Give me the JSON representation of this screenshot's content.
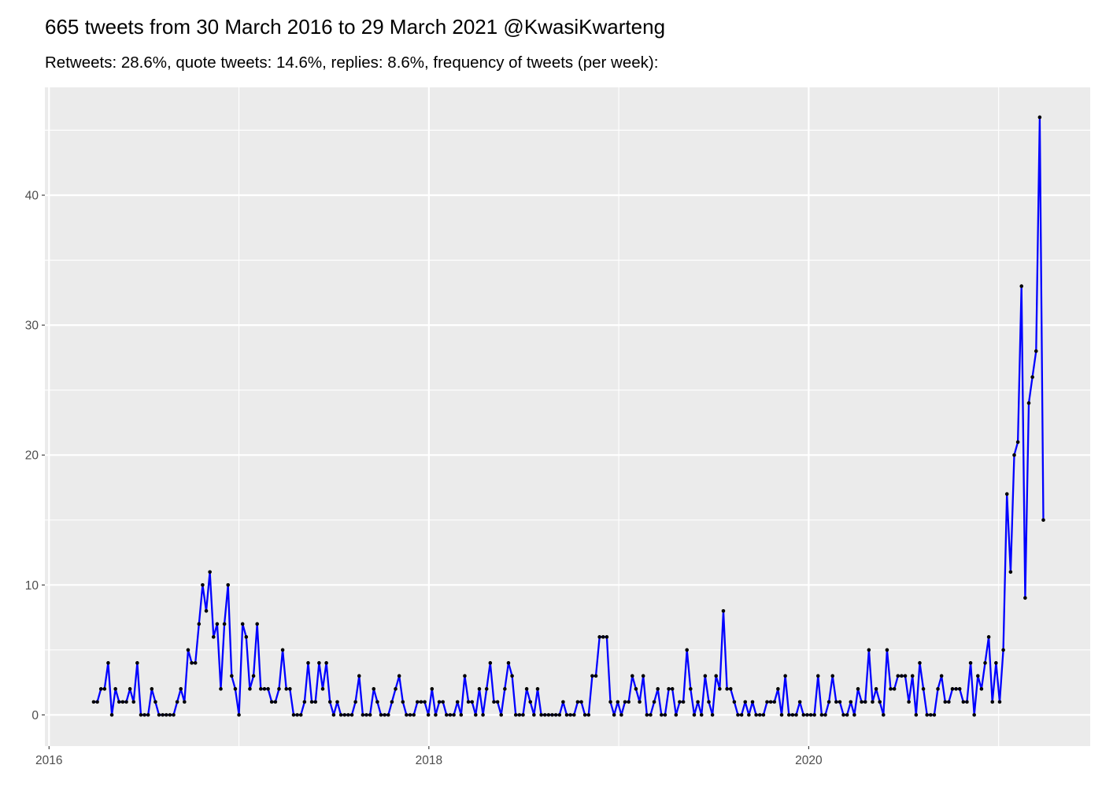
{
  "chart_data": {
    "type": "line",
    "title": "665 tweets from 30 March 2016 to 29 March 2021 @KwasiKwarteng",
    "subtitle": "Retweets: 28.6%, quote tweets: 14.6%, replies: 8.6%, frequency of tweets (per week):",
    "xlabel": "",
    "ylabel": "",
    "xlim": [
      "2015-12-24",
      "2021-06-26"
    ],
    "ylim": [
      -2.4,
      48.3
    ],
    "x_ticks": [
      "2016",
      "2018",
      "2020"
    ],
    "y_ticks": [
      "0",
      "10",
      "20",
      "30",
      "40"
    ],
    "grid": true,
    "legend": "none",
    "colors": {
      "line": "#0000ff",
      "points": "#000000",
      "panel": "#ebebeb",
      "grid": "#ffffff"
    },
    "x": [
      "2016-03-27",
      "2016-04-03",
      "2016-04-10",
      "2016-04-17",
      "2016-04-24",
      "2016-05-01",
      "2016-05-08",
      "2016-05-15",
      "2016-05-22",
      "2016-05-29",
      "2016-06-05",
      "2016-06-12",
      "2016-06-19",
      "2016-06-26",
      "2016-07-03",
      "2016-07-10",
      "2016-07-17",
      "2016-07-24",
      "2016-07-31",
      "2016-08-07",
      "2016-08-14",
      "2016-08-21",
      "2016-08-28",
      "2016-09-04",
      "2016-09-11",
      "2016-09-18",
      "2016-09-25",
      "2016-10-02",
      "2016-10-09",
      "2016-10-16",
      "2016-10-23",
      "2016-10-30",
      "2016-11-06",
      "2016-11-13",
      "2016-11-20",
      "2016-11-27",
      "2016-12-04",
      "2016-12-11",
      "2016-12-18",
      "2016-12-25",
      "2017-01-01",
      "2017-01-08",
      "2017-01-15",
      "2017-01-22",
      "2017-01-29",
      "2017-02-05",
      "2017-02-12",
      "2017-02-19",
      "2017-02-26",
      "2017-03-05",
      "2017-03-12",
      "2017-03-19",
      "2017-03-26",
      "2017-04-02",
      "2017-04-09",
      "2017-04-16",
      "2017-04-23",
      "2017-04-30",
      "2017-05-07",
      "2017-05-14",
      "2017-05-21",
      "2017-05-28",
      "2017-06-04",
      "2017-06-11",
      "2017-06-18",
      "2017-06-25",
      "2017-07-02",
      "2017-07-09",
      "2017-07-16",
      "2017-07-23",
      "2017-07-30",
      "2017-08-06",
      "2017-08-13",
      "2017-08-20",
      "2017-08-27",
      "2017-09-03",
      "2017-09-10",
      "2017-09-17",
      "2017-09-24",
      "2017-10-01",
      "2017-10-08",
      "2017-10-15",
      "2017-10-22",
      "2017-10-29",
      "2017-11-05",
      "2017-11-12",
      "2017-11-19",
      "2017-11-26",
      "2017-12-03",
      "2017-12-10",
      "2017-12-17",
      "2017-12-24",
      "2017-12-31",
      "2018-01-07",
      "2018-01-14",
      "2018-01-21",
      "2018-01-28",
      "2018-02-04",
      "2018-02-11",
      "2018-02-18",
      "2018-02-25",
      "2018-03-04",
      "2018-03-11",
      "2018-03-18",
      "2018-03-25",
      "2018-04-01",
      "2018-04-08",
      "2018-04-15",
      "2018-04-22",
      "2018-04-29",
      "2018-05-06",
      "2018-05-13",
      "2018-05-20",
      "2018-05-27",
      "2018-06-03",
      "2018-06-10",
      "2018-06-17",
      "2018-06-24",
      "2018-07-01",
      "2018-07-08",
      "2018-07-15",
      "2018-07-22",
      "2018-07-29",
      "2018-08-05",
      "2018-08-12",
      "2018-08-19",
      "2018-08-26",
      "2018-09-02",
      "2018-09-09",
      "2018-09-16",
      "2018-09-23",
      "2018-09-30",
      "2018-10-07",
      "2018-10-14",
      "2018-10-21",
      "2018-10-28",
      "2018-11-04",
      "2018-11-11",
      "2018-11-18",
      "2018-11-25",
      "2018-12-02",
      "2018-12-09",
      "2018-12-16",
      "2018-12-23",
      "2018-12-30",
      "2019-01-06",
      "2019-01-13",
      "2019-01-20",
      "2019-01-27",
      "2019-02-03",
      "2019-02-10",
      "2019-02-17",
      "2019-02-24",
      "2019-03-03",
      "2019-03-10",
      "2019-03-17",
      "2019-03-24",
      "2019-03-31",
      "2019-04-07",
      "2019-04-14",
      "2019-04-21",
      "2019-04-28",
      "2019-05-05",
      "2019-05-12",
      "2019-05-19",
      "2019-05-26",
      "2019-06-02",
      "2019-06-09",
      "2019-06-16",
      "2019-06-23",
      "2019-06-30",
      "2019-07-07",
      "2019-07-14",
      "2019-07-21",
      "2019-07-28",
      "2019-08-04",
      "2019-08-11",
      "2019-08-18",
      "2019-08-25",
      "2019-09-01",
      "2019-09-08",
      "2019-09-15",
      "2019-09-22",
      "2019-09-29",
      "2019-10-06",
      "2019-10-13",
      "2019-10-20",
      "2019-10-27",
      "2019-11-03",
      "2019-11-10",
      "2019-11-17",
      "2019-11-24",
      "2019-12-01",
      "2019-12-08",
      "2019-12-15",
      "2019-12-22",
      "2019-12-29",
      "2020-01-05",
      "2020-01-12",
      "2020-01-19",
      "2020-01-26",
      "2020-02-02",
      "2020-02-09",
      "2020-02-16",
      "2020-02-23",
      "2020-03-01",
      "2020-03-08",
      "2020-03-15",
      "2020-03-22",
      "2020-03-29",
      "2020-04-05",
      "2020-04-12",
      "2020-04-19",
      "2020-04-26",
      "2020-05-03",
      "2020-05-10",
      "2020-05-17",
      "2020-05-24",
      "2020-05-31",
      "2020-06-07",
      "2020-06-14",
      "2020-06-21",
      "2020-06-28",
      "2020-07-05",
      "2020-07-12",
      "2020-07-19",
      "2020-07-26",
      "2020-08-02",
      "2020-08-09",
      "2020-08-16",
      "2020-08-23",
      "2020-08-30",
      "2020-09-06",
      "2020-09-13",
      "2020-09-20",
      "2020-09-27",
      "2020-10-04",
      "2020-10-11",
      "2020-10-18",
      "2020-10-25",
      "2020-11-01",
      "2020-11-08",
      "2020-11-15",
      "2020-11-22",
      "2020-11-29",
      "2020-12-06",
      "2020-12-13",
      "2020-12-20",
      "2020-12-27",
      "2021-01-03",
      "2021-01-10",
      "2021-01-17",
      "2021-01-24",
      "2021-01-31",
      "2021-02-07",
      "2021-02-14",
      "2021-02-21",
      "2021-02-28",
      "2021-03-07",
      "2021-03-14",
      "2021-03-21",
      "2021-03-28"
    ],
    "values": [
      1,
      1,
      2,
      2,
      4,
      0,
      2,
      1,
      1,
      1,
      2,
      1,
      4,
      0,
      0,
      0,
      2,
      1,
      0,
      0,
      0,
      0,
      0,
      1,
      2,
      1,
      5,
      4,
      4,
      7,
      10,
      8,
      11,
      6,
      7,
      2,
      7,
      10,
      3,
      2,
      0,
      7,
      6,
      2,
      3,
      7,
      2,
      2,
      2,
      1,
      1,
      2,
      5,
      2,
      2,
      0,
      0,
      0,
      1,
      4,
      1,
      1,
      4,
      2,
      4,
      1,
      0,
      1,
      0,
      0,
      0,
      0,
      1,
      3,
      0,
      0,
      0,
      2,
      1,
      0,
      0,
      0,
      1,
      2,
      3,
      1,
      0,
      0,
      0,
      1,
      1,
      1,
      0,
      2,
      0,
      1,
      1,
      0,
      0,
      0,
      1,
      0,
      3,
      1,
      1,
      0,
      2,
      0,
      2,
      4,
      1,
      1,
      0,
      2,
      4,
      3,
      0,
      0,
      0,
      2,
      1,
      0,
      2,
      0,
      0,
      0,
      0,
      0,
      0,
      1,
      0,
      0,
      0,
      1,
      1,
      0,
      0,
      3,
      3,
      6,
      6,
      6,
      1,
      0,
      1,
      0,
      1,
      1,
      3,
      2,
      1,
      3,
      0,
      0,
      1,
      2,
      0,
      0,
      2,
      2,
      0,
      1,
      1,
      5,
      2,
      0,
      1,
      0,
      3,
      1,
      0,
      3,
      2,
      8,
      2,
      2,
      1,
      0,
      0,
      1,
      0,
      1,
      0,
      0,
      0,
      1,
      1,
      1,
      2,
      0,
      3,
      0,
      0,
      0,
      1,
      0,
      0,
      0,
      0,
      3,
      0,
      0,
      1,
      3,
      1,
      1,
      0,
      0,
      1,
      0,
      2,
      1,
      1,
      5,
      1,
      2,
      1,
      0,
      5,
      2,
      2,
      3,
      3,
      3,
      1,
      3,
      0,
      4,
      2,
      0,
      0,
      0,
      2,
      3,
      1,
      1,
      2,
      2,
      2,
      1,
      1,
      4,
      0,
      3,
      2,
      4,
      6,
      1,
      4,
      1,
      5,
      17,
      11,
      20,
      21,
      33,
      9,
      24,
      26,
      28,
      46,
      15
    ]
  }
}
